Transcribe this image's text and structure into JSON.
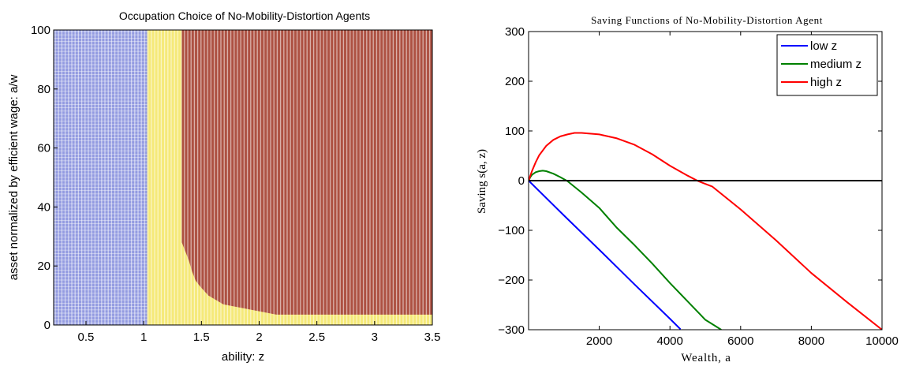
{
  "colors": {
    "blue_region": "#3a48c8",
    "yellow_region": "#f2e24c",
    "red_region": "#9b2a34",
    "low_z": "#0000ff",
    "medium_z": "#008000",
    "high_z": "#ff0000",
    "zero_line": "#000000"
  },
  "chart_data": [
    {
      "type": "heatmap",
      "title": "Occupation Choice of No-Mobility-Distortion Agents",
      "xlabel": "ability: z",
      "ylabel": "asset normalized by efficient wage: a/w",
      "xlim": [
        0.22,
        3.5
      ],
      "ylim": [
        0,
        100
      ],
      "xticks": [
        "0.5",
        "1",
        "1.5",
        "2",
        "2.5",
        "3",
        "3.5"
      ],
      "yticks": [
        "0",
        "20",
        "40",
        "60",
        "80",
        "100"
      ],
      "grid": false,
      "regions": [
        {
          "color": "blue",
          "z_from": 0.22,
          "z_to": 1.03,
          "a_from": 0,
          "a_to": 100
        },
        {
          "color": "yellow",
          "z_from": 1.03,
          "z_to": 3.5,
          "a_from": 0,
          "a_to": 100
        },
        {
          "color": "red",
          "boundary": [
            {
              "z": 1.33,
              "a": 100
            },
            {
              "z": 1.33,
              "a": 28
            },
            {
              "z": 1.36,
              "a": 25
            },
            {
              "z": 1.39,
              "a": 22
            },
            {
              "z": 1.42,
              "a": 18
            },
            {
              "z": 1.45,
              "a": 15
            },
            {
              "z": 1.49,
              "a": 13
            },
            {
              "z": 1.56,
              "a": 10
            },
            {
              "z": 1.69,
              "a": 7
            },
            {
              "z": 2.15,
              "a": 3.5
            },
            {
              "z": 3.5,
              "a": 3.5
            }
          ]
        }
      ]
    },
    {
      "type": "line",
      "title": "Saving Functions of No-Mobility-Distortion Agent",
      "xlabel": "Wealth, a",
      "ylabel": "Saving s(a, z)",
      "xlim": [
        0,
        10000
      ],
      "ylim": [
        -300,
        300
      ],
      "xticks": [
        "2000",
        "4000",
        "6000",
        "8000",
        "10000"
      ],
      "yticks": [
        "−300",
        "−200",
        "−100",
        "0",
        "100",
        "200",
        "300"
      ],
      "grid": false,
      "legend": "top-right",
      "series": [
        {
          "name": "low z",
          "color": "low_z",
          "x": [
            0,
            1000,
            2000,
            3000,
            4000,
            4300
          ],
          "y": [
            0,
            -70,
            -139,
            -209,
            -278,
            -299
          ]
        },
        {
          "name": "medium z",
          "color": "medium_z",
          "x": [
            0,
            50,
            100,
            200,
            300,
            400,
            500,
            700,
            900,
            1100,
            1500,
            2000,
            2500,
            3000,
            3500,
            4000,
            4500,
            5000,
            5450
          ],
          "y": [
            0,
            7,
            12,
            17,
            19,
            20,
            19,
            14,
            7,
            -1,
            -24,
            -55,
            -95,
            -130,
            -167,
            -206,
            -243,
            -280,
            -300
          ]
        },
        {
          "name": "high z",
          "color": "high_z",
          "x": [
            0,
            50,
            100,
            200,
            300,
            500,
            700,
            900,
            1100,
            1300,
            1500,
            2000,
            2500,
            3000,
            3500,
            4000,
            4500,
            4800,
            5200,
            6000,
            7000,
            8000,
            9000,
            10000
          ],
          "y": [
            0,
            10,
            20,
            37,
            51,
            70,
            82,
            89,
            93,
            96,
            96,
            93,
            85,
            72,
            53,
            30,
            10,
            -1,
            -12,
            -58,
            -120,
            -186,
            -244,
            -300
          ]
        },
        {
          "name": "",
          "color": "zero_line",
          "x": [
            0,
            10000
          ],
          "y": [
            0,
            0
          ]
        }
      ]
    }
  ]
}
